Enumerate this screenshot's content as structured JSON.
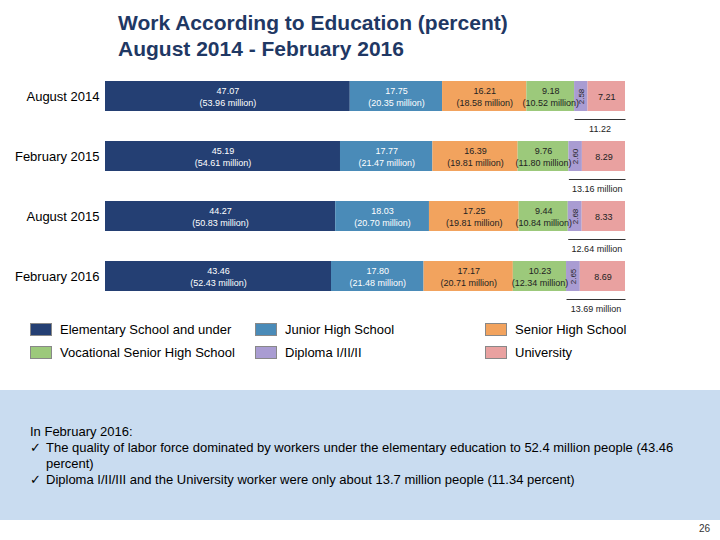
{
  "chart_data": {
    "type": "bar",
    "title": "Work According to Education (percent)",
    "subtitle": "August 2014 - February 2016",
    "orientation": "horizontal",
    "stacked": true,
    "data_labels": true,
    "tick_labels": "y",
    "legend": "bottom",
    "xlim": [
      0,
      100
    ],
    "xticks": [],
    "categories": [
      "August 2014",
      "February 2015",
      "August 2015",
      "February 2016"
    ],
    "series": [
      {
        "name": "Elementary School and under",
        "color": "#243f73",
        "values": [
          47.07,
          45.19,
          44.27,
          43.46
        ],
        "value_labels": [
          "47.07",
          "45.19",
          "44.27",
          "43.46"
        ],
        "people_labels": [
          "(53.96 million)",
          "(54.61 million)",
          "(50.83 million)",
          "(52.43 million)"
        ]
      },
      {
        "name": "Junior High School",
        "color": "#4a8bb8",
        "values": [
          17.75,
          17.77,
          18.03,
          17.8
        ],
        "value_labels": [
          "17.75",
          "17.77",
          "18.03",
          "17.80"
        ],
        "people_labels": [
          "(20.35 million)",
          "(21.47 million)",
          "(20.70 million)",
          "(21.48 million)"
        ]
      },
      {
        "name": "Senior High School",
        "color": "#f2a35e",
        "values": [
          16.21,
          16.39,
          17.25,
          17.17
        ],
        "value_labels": [
          "16.21",
          "16.39",
          "17.25",
          "17.17"
        ],
        "people_labels": [
          "(18.58 million)",
          "(19.81 million)",
          "(19.81 million)",
          "(20.71 million)"
        ]
      },
      {
        "name": "Vocational Senior High School",
        "color": "#9cc97b",
        "values": [
          9.18,
          9.76,
          9.44,
          10.23
        ],
        "value_labels": [
          "9.18",
          "9.76",
          "9.44",
          "10.23"
        ],
        "people_labels": [
          "(10.52 million)",
          "(11.80 million)",
          "(10.84 million)",
          "(12.34 million)"
        ]
      },
      {
        "name": "Diploma I/II/II",
        "color": "#a99cd2",
        "values": [
          2.58,
          2.6,
          2.68,
          2.65
        ],
        "value_labels": [
          "2.58",
          "2.60",
          "2.68",
          "2.65"
        ]
      },
      {
        "name": "University",
        "color": "#e9a1a0",
        "values": [
          7.21,
          8.29,
          8.33,
          8.69
        ],
        "value_labels": [
          "7.21",
          "8.29",
          "8.33",
          "8.69"
        ]
      }
    ],
    "annotations": [
      {
        "category": "August 2014",
        "span": [
          "Diploma I/II/II",
          "University"
        ],
        "label": "11.22"
      },
      {
        "category": "February 2015",
        "span": [
          "Diploma I/II/II",
          "University"
        ],
        "label": "13.16 million"
      },
      {
        "category": "August 2015",
        "span": [
          "Diploma I/II/II",
          "University"
        ],
        "label": "12.64 million"
      },
      {
        "category": "February 2016",
        "span": [
          "Diploma I/II/II",
          "University"
        ],
        "label": "13.69 million"
      }
    ]
  },
  "footer": {
    "heading": "In February 2016:",
    "bullets": [
      "The quality of labor force dominated by workers under the elementary education to 52.4 million people (43.46 percent)",
      "Diploma I/II/III and the University worker were only about 13.7 million people (11.34 percent)"
    ]
  },
  "page_number": "26"
}
